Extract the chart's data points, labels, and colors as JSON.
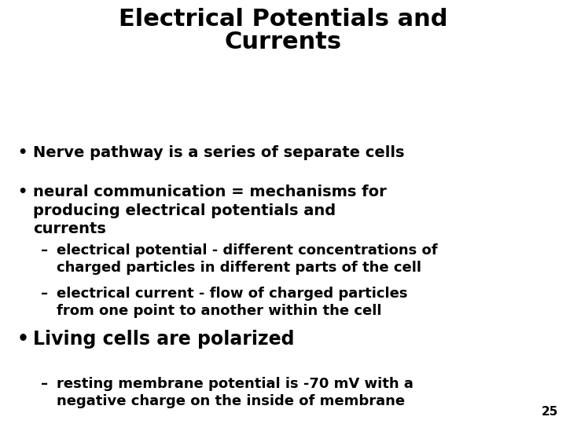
{
  "background_color": "#ffffff",
  "title_line1": "Electrical Potentials and",
  "title_line2": "Currents",
  "title_fontsize": 22,
  "title_fontweight": "bold",
  "content_fontsize": 14,
  "content_fontweight": "bold",
  "sub_fontsize": 13,
  "sub_fontweight": "bold",
  "living_fontsize": 17,
  "page_number": "25",
  "page_num_fontsize": 11,
  "fig_width": 7.2,
  "fig_height": 5.4,
  "fig_dpi": 100,
  "items": [
    {
      "type": "bullet",
      "size": "normal",
      "text": "Nerve pathway is a series of separate cells"
    },
    {
      "type": "bullet",
      "size": "normal",
      "text": "neural communication = mechanisms for\nproducing electrical potentials and\ncurrents"
    },
    {
      "type": "dash",
      "size": "sub",
      "text": "electrical potential - different concentrations of\ncharged particles in different parts of the cell"
    },
    {
      "type": "dash",
      "size": "sub",
      "text": "electrical current - flow of charged particles\nfrom one point to another within the cell"
    },
    {
      "type": "bullet",
      "size": "large",
      "text": "Living cells are polarized"
    },
    {
      "type": "dash",
      "size": "sub",
      "text": "resting membrane potential is -70 mV with a\nnegative charge on the inside of membrane"
    }
  ]
}
